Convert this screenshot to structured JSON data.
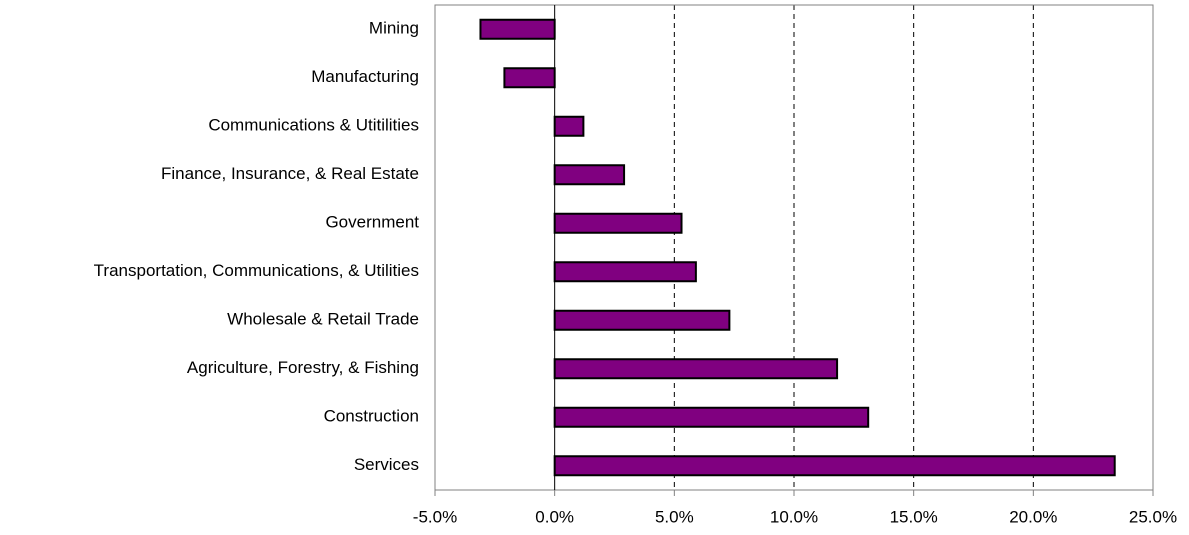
{
  "chart_data": {
    "type": "bar",
    "orientation": "horizontal",
    "categories": [
      "Mining",
      "Manufacturing",
      "Communications & Utitilities",
      "Finance, Insurance, & Real Estate",
      "Government",
      "Transportation, Communications, & Utilities",
      "Wholesale & Retail Trade",
      "Agriculture, Forestry, & Fishing",
      "Construction",
      "Services"
    ],
    "values": [
      -3.1,
      -2.1,
      1.2,
      2.9,
      5.3,
      5.9,
      7.3,
      11.8,
      13.1,
      23.4
    ],
    "color": "#800080",
    "xlim": [
      -5,
      25
    ],
    "xticks": [
      {
        "value": -5,
        "label": "-5.0%"
      },
      {
        "value": 0,
        "label": "0.0%"
      },
      {
        "value": 5,
        "label": "5.0%"
      },
      {
        "value": 10,
        "label": "10.0%"
      },
      {
        "value": 15,
        "label": "15.0%"
      },
      {
        "value": 20,
        "label": "20.0%"
      },
      {
        "value": 25,
        "label": "25.0%"
      }
    ],
    "grid": true
  }
}
